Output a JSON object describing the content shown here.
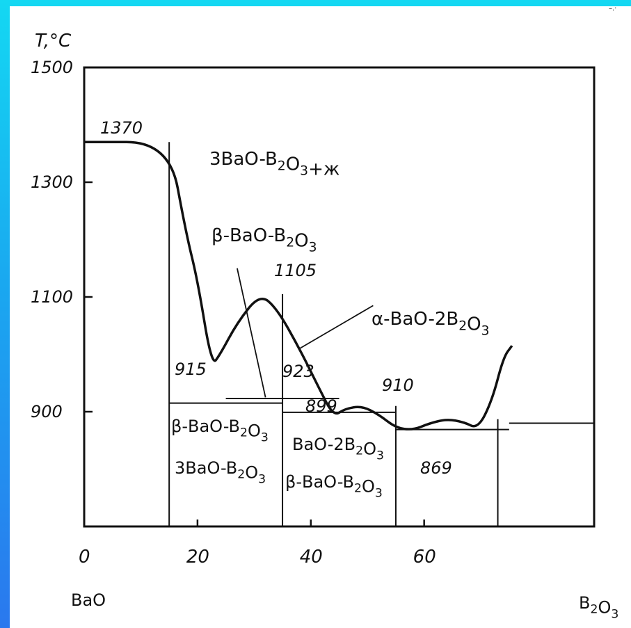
{
  "chart_data": {
    "type": "line",
    "title": "",
    "ylabel": "T,°C",
    "xlabel": "",
    "xlim": [
      0,
      90
    ],
    "ylim": [
      700,
      1500
    ],
    "x_ticks": [
      "0",
      "20",
      "40",
      "60"
    ],
    "y_ticks": [
      "1500",
      "1300",
      "1100",
      "900"
    ],
    "x_tick_values": [
      0,
      20,
      40,
      60
    ],
    "y_tick_values": [
      1500,
      1300,
      1100,
      900
    ],
    "end_labels": {
      "left": "BaO",
      "right": "B₂O₃"
    },
    "temperature_labels": [
      "1370",
      "1105",
      "910",
      "915",
      "923",
      "899",
      "869"
    ],
    "phase_labels": {
      "upper": "3BaO-B₂O₃+ж",
      "beta": "β-BaO-B₂O₃",
      "alpha": "α-BaO-2B₂O₃",
      "left_region_1": "β-BaO-B₂O₃",
      "left_region_2": "3BaO-B₂O₃",
      "mid_region_1": "BaO-2B₂O₃",
      "mid_region_2": "β-BaO-B₂O₃"
    },
    "series": [
      {
        "values": [
          [
            0,
            1370
          ],
          [
            15,
            1370
          ],
          [
            18,
            1210
          ],
          [
            20,
            1130
          ],
          [
            22.5,
            980
          ],
          [
            24,
            1000
          ],
          [
            27,
            1055
          ],
          [
            31,
            1105
          ],
          [
            34,
            1080
          ],
          [
            38,
            1010
          ],
          [
            41.5,
            940
          ],
          [
            44,
            892
          ],
          [
            46,
            905
          ],
          [
            49,
            910
          ],
          [
            52,
            895
          ],
          [
            55,
            872
          ],
          [
            58,
            868
          ],
          [
            61,
            880
          ],
          [
            64,
            887
          ],
          [
            67,
            882
          ],
          [
            69.5,
            870
          ],
          [
            72,
            920
          ],
          [
            74,
            995
          ],
          [
            75.5,
            1015
          ]
        ]
      }
    ],
    "reference_lines": [
      {
        "label": "915",
        "y": 915,
        "x_from": 15,
        "x_to": 35
      },
      {
        "label": "923",
        "y": 923,
        "x_from": 25,
        "x_to": 45
      },
      {
        "label": "899",
        "y": 899,
        "x_from": 35,
        "x_to": 55
      },
      {
        "label": "869",
        "y": 869,
        "x_from": 55,
        "x_to": 75
      },
      {
        "label": "",
        "y": 880,
        "x_from": 75,
        "x_to": 90
      }
    ],
    "grid": false,
    "legend": "none"
  },
  "colors": {
    "frame_gradient_top": "#14d8f2",
    "frame_gradient_bottom": "#2a78ee",
    "paper": "#ffffff",
    "ink": "#111111"
  }
}
